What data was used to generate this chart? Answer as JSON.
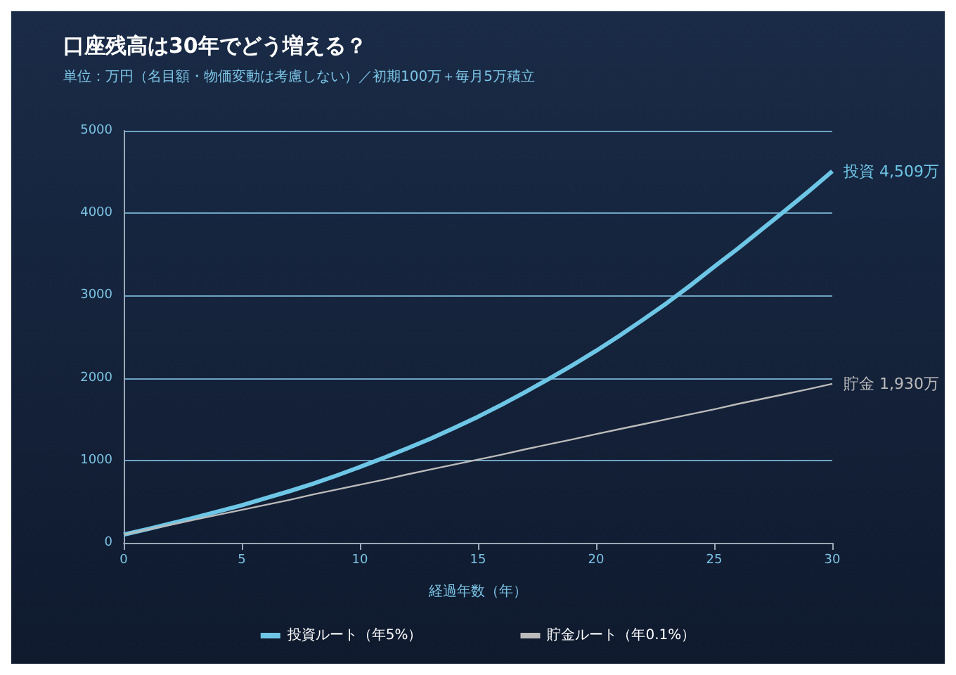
{
  "chart_data": {
    "type": "line",
    "title": "口座残高は30年でどう増える？",
    "subtitle": "単位：万円（名目額・物価変動は考慮しない）／初期100万＋毎月5万積立",
    "xlabel": "経過年数（年）",
    "x": [
      0,
      1,
      2,
      3,
      4,
      5,
      6,
      7,
      8,
      9,
      10,
      11,
      12,
      13,
      14,
      15,
      16,
      17,
      18,
      19,
      20,
      21,
      22,
      23,
      24,
      25,
      26,
      27,
      28,
      29,
      30
    ],
    "series": [
      {
        "name": "投資ルート（年5%）",
        "color": "#6ec6e6",
        "values": [
          100,
          165,
          235,
          305,
          380,
          455,
          540,
          625,
          715,
          815,
          920,
          1030,
          1145,
          1265,
          1395,
          1530,
          1675,
          1830,
          1990,
          2155,
          2330,
          2515,
          2710,
          2910,
          3125,
          3350,
          3570,
          3800,
          4030,
          4265,
          4509
        ]
      },
      {
        "name": "貯金ルート（年0.1%）",
        "color": "#bbbbbb",
        "values": [
          100,
          160,
          220,
          280,
          340,
          400,
          460,
          520,
          585,
          645,
          705,
          765,
          830,
          890,
          950,
          1010,
          1070,
          1135,
          1195,
          1255,
          1320,
          1380,
          1440,
          1500,
          1560,
          1620,
          1685,
          1745,
          1805,
          1865,
          1930
        ]
      }
    ],
    "annotations": [
      {
        "text": "投資 4,509万",
        "x": 30,
        "y": 4509
      },
      {
        "text": "貯金 1,930万",
        "x": 30,
        "y": 1930
      }
    ],
    "xlim": [
      0,
      30
    ],
    "xticks": [
      0,
      5,
      10,
      15,
      20,
      25,
      30
    ],
    "ylim": [
      0,
      5000
    ],
    "yticks": [
      0,
      1000,
      2000,
      3000,
      4000,
      5000
    ],
    "grid": "y",
    "legend": "bottom",
    "marker": "none",
    "line_style": "solid"
  }
}
